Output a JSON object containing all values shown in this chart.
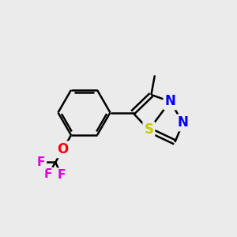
{
  "background_color": "#ebebeb",
  "bond_color": "#000000",
  "bond_width": 1.8,
  "atom_colors": {
    "N": "#0000ff",
    "S": "#c8c800",
    "O": "#ff0000",
    "F": "#e000e0",
    "C": "#000000"
  },
  "font_size_atom": 12,
  "font_size_small": 11,
  "figsize": [
    3.0,
    3.0
  ],
  "dpi": 100
}
